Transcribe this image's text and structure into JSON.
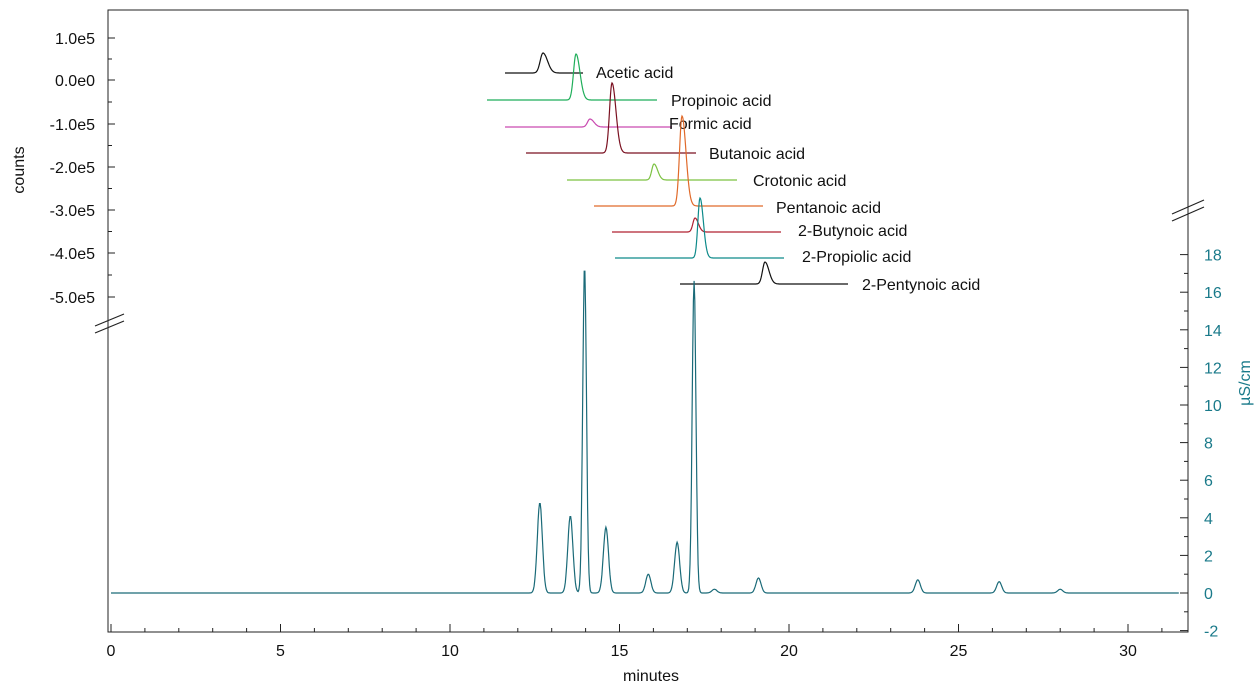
{
  "chart_data": {
    "type": "line",
    "title": "",
    "xlabel": "minutes",
    "ylabel_left": "counts",
    "ylabel_right": "µS/cm",
    "xlim": [
      0,
      31.6
    ],
    "x_ticks": [
      0,
      5,
      10,
      15,
      20,
      25,
      30
    ],
    "ylim_right": [
      -2,
      19.5
    ],
    "y_ticks_right": [
      -2,
      0,
      2,
      4,
      6,
      8,
      10,
      12,
      14,
      16,
      18
    ],
    "y_ticks_left": [
      "1.0e5",
      "0.0e0",
      "-1.0e5",
      "-2.0e5",
      "-3.0e5",
      "-4.0e5",
      "-5.0e5"
    ],
    "colors": {
      "conductivity": "#1a6a78",
      "right_axis": "#1a7a8a"
    },
    "conductivity_trace": {
      "name": "",
      "baseline": 0,
      "peaks": [
        {
          "t": 12.65,
          "h": 4.8
        },
        {
          "t": 13.55,
          "h": 4.1
        },
        {
          "t": 13.97,
          "h": 17.4
        },
        {
          "t": 14.6,
          "h": 3.5
        },
        {
          "t": 15.85,
          "h": 1.0
        },
        {
          "t": 16.7,
          "h": 2.7
        },
        {
          "t": 17.2,
          "h": 16.6
        },
        {
          "t": 17.8,
          "h": 0.2
        },
        {
          "t": 19.1,
          "h": 0.8
        },
        {
          "t": 23.8,
          "h": 0.7
        },
        {
          "t": 26.2,
          "h": 0.6
        },
        {
          "t": 28.0,
          "h": 0.2
        }
      ]
    },
    "ms_traces": [
      {
        "name": "Acetic acid",
        "color": "#111111"
      },
      {
        "name": "Propinoic acid",
        "color": "#1fae5a"
      },
      {
        "name": "Formic acid",
        "color": "#c94ab0"
      },
      {
        "name": "Butanoic acid",
        "color": "#7a1020"
      },
      {
        "name": "Crotonic acid",
        "color": "#7cc242"
      },
      {
        "name": "Pentanoic acid",
        "color": "#e06a2a"
      },
      {
        "name": "2-Butynoic acid",
        "color": "#b02030"
      },
      {
        "name": "2-Propiolic acid",
        "color": "#0d8a8a"
      },
      {
        "name": "2-Pentynoic acid",
        "color": "#111111"
      }
    ]
  }
}
